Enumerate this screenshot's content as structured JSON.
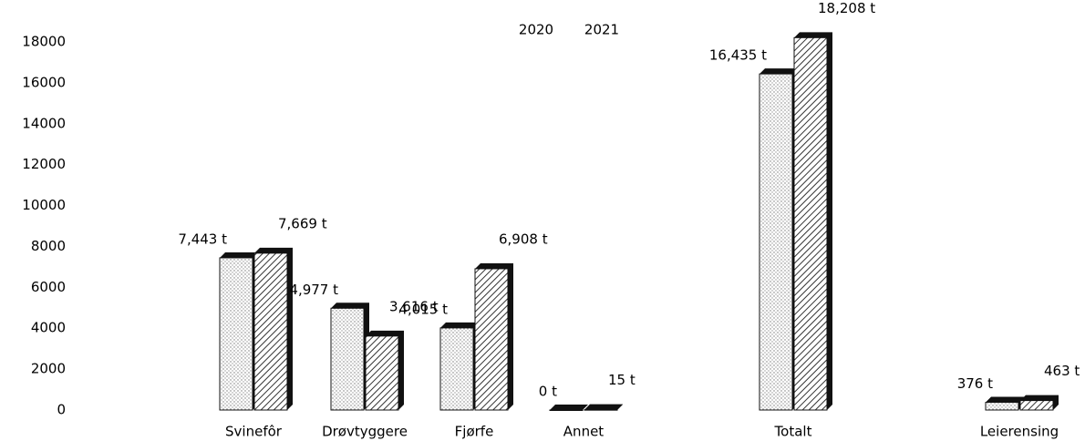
{
  "chart_data": {
    "type": "bar",
    "categories": [
      "Svinefôr",
      "Drøvtyggere",
      "Fjørfe",
      "Annet",
      "Totalt",
      "Leierensing"
    ],
    "series": [
      {
        "name": "2020",
        "color": "#d9d9d9",
        "values": [
          7443,
          4977,
          4015,
          0,
          16435,
          376
        ],
        "value_labels": [
          "7,443 t",
          "4,977 t",
          "4,015 t",
          "0 t",
          "16,435 t",
          "376 t"
        ]
      },
      {
        "name": "2021",
        "color": "#595959",
        "values": [
          7669,
          3616,
          6908,
          15,
          18208,
          463
        ],
        "value_labels": [
          "7,669 t",
          "3,616 t",
          "6,908 t",
          "15 t",
          "18,208 t",
          "463 t"
        ]
      }
    ],
    "ylim": [
      0,
      18000
    ],
    "yticks": [
      0,
      2000,
      4000,
      6000,
      8000,
      10000,
      12000,
      14000,
      16000,
      18000
    ],
    "legend": "top"
  }
}
